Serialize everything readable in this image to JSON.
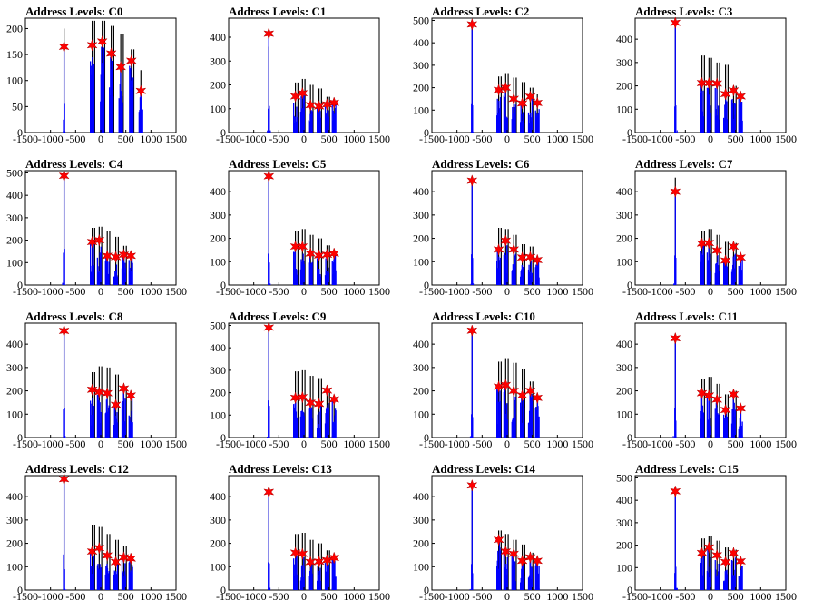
{
  "figure": {
    "xtick_labels": [
      "-1500",
      "-1000",
      "-500",
      "0",
      "500",
      "1000",
      "1500"
    ],
    "colors": {
      "histogram": "#0000ff",
      "peak_marker": "#ff0000",
      "black_trace": "#000000"
    }
  },
  "chart_data": [
    {
      "type": "bar",
      "title": "Address Levels: C0",
      "xlim": [
        -1500,
        1500
      ],
      "ylim": [
        0,
        220
      ],
      "yticks": [
        0,
        50,
        100,
        150,
        200
      ],
      "peaks": {
        "x": [
          -730,
          -170,
          30,
          210,
          400,
          610,
          800
        ],
        "y": [
          165,
          168,
          175,
          152,
          126,
          138,
          80
        ]
      },
      "black_bars": {
        "x": [
          -730,
          -170,
          -120,
          30,
          80,
          210,
          260,
          400,
          450,
          610,
          660,
          800
        ],
        "y": [
          200,
          215,
          215,
          215,
          215,
          205,
          205,
          190,
          190,
          160,
          160,
          120
        ]
      }
    },
    {
      "type": "bar",
      "title": "Address Levels: C1",
      "xlim": [
        -1500,
        1500
      ],
      "ylim": [
        0,
        480
      ],
      "yticks": [
        0,
        100,
        200,
        300,
        400
      ],
      "peaks": {
        "x": [
          -700,
          -170,
          -30,
          130,
          300,
          460,
          600
        ],
        "y": [
          415,
          152,
          165,
          115,
          110,
          118,
          125
        ]
      },
      "black_bars": {
        "x": [
          -700,
          -170,
          -120,
          -30,
          20,
          130,
          180,
          300,
          350,
          460,
          510,
          600
        ],
        "y": [
          360,
          210,
          210,
          225,
          225,
          200,
          200,
          185,
          185,
          150,
          150,
          130
        ]
      }
    },
    {
      "type": "bar",
      "title": "Address Levels: C2",
      "xlim": [
        -1500,
        1500
      ],
      "ylim": [
        0,
        510
      ],
      "yticks": [
        0,
        100,
        200,
        300,
        400,
        500
      ],
      "peaks": {
        "x": [
          -700,
          -170,
          -30,
          130,
          300,
          460,
          600
        ],
        "y": [
          482,
          190,
          200,
          150,
          130,
          160,
          132
        ]
      },
      "black_bars": {
        "x": [
          -700,
          -170,
          -120,
          -30,
          20,
          130,
          180,
          300,
          350,
          460,
          510,
          600
        ],
        "y": [
          490,
          250,
          250,
          265,
          265,
          245,
          245,
          225,
          225,
          200,
          200,
          170
        ]
      }
    },
    {
      "type": "bar",
      "title": "Address Levels: C3",
      "xlim": [
        -1500,
        1500
      ],
      "ylim": [
        0,
        490
      ],
      "yticks": [
        0,
        100,
        200,
        300,
        400
      ],
      "peaks": {
        "x": [
          -700,
          -170,
          -30,
          130,
          300,
          460,
          600
        ],
        "y": [
          470,
          212,
          212,
          210,
          165,
          180,
          155
        ]
      },
      "black_bars": {
        "x": [
          -700,
          -170,
          -120,
          -30,
          20,
          130,
          180,
          300,
          350,
          460,
          510,
          600
        ],
        "y": [
          470,
          330,
          330,
          320,
          320,
          300,
          300,
          290,
          290,
          200,
          200,
          160
        ]
      }
    },
    {
      "type": "bar",
      "title": "Address Levels: C4",
      "xlim": [
        -1500,
        1500
      ],
      "ylim": [
        0,
        510
      ],
      "yticks": [
        0,
        100,
        200,
        300,
        400,
        500
      ],
      "peaks": {
        "x": [
          -730,
          -170,
          -30,
          130,
          300,
          460,
          600
        ],
        "y": [
          487,
          192,
          200,
          130,
          125,
          135,
          130
        ]
      },
      "black_bars": {
        "x": [
          -730,
          -170,
          -120,
          -30,
          20,
          130,
          180,
          300,
          350,
          460,
          510,
          600
        ],
        "y": [
          490,
          255,
          255,
          260,
          260,
          240,
          240,
          215,
          215,
          175,
          175,
          150
        ]
      }
    },
    {
      "type": "bar",
      "title": "Address Levels: C5",
      "xlim": [
        -1500,
        1500
      ],
      "ylim": [
        0,
        490
      ],
      "yticks": [
        0,
        100,
        200,
        300,
        400
      ],
      "peaks": {
        "x": [
          -700,
          -170,
          -30,
          130,
          300,
          460,
          600
        ],
        "y": [
          466,
          165,
          165,
          135,
          127,
          130,
          135
        ]
      },
      "black_bars": {
        "x": [
          -700,
          -170,
          -120,
          -30,
          20,
          130,
          180,
          300,
          350,
          460,
          510,
          600
        ],
        "y": [
          470,
          230,
          230,
          240,
          240,
          215,
          215,
          200,
          200,
          170,
          170,
          145
        ]
      }
    },
    {
      "type": "bar",
      "title": "Address Levels: C6",
      "xlim": [
        -1500,
        1500
      ],
      "ylim": [
        0,
        490
      ],
      "yticks": [
        0,
        100,
        200,
        300,
        400
      ],
      "peaks": {
        "x": [
          -700,
          -170,
          -30,
          130,
          300,
          460,
          600
        ],
        "y": [
          447,
          152,
          190,
          152,
          118,
          120,
          107
        ]
      },
      "black_bars": {
        "x": [
          -700,
          -170,
          -120,
          -30,
          20,
          130,
          180,
          300,
          350,
          460,
          510,
          600
        ],
        "y": [
          450,
          245,
          245,
          240,
          240,
          215,
          215,
          175,
          175,
          165,
          165,
          125
        ]
      }
    },
    {
      "type": "bar",
      "title": "Address Levels: C7",
      "xlim": [
        -1500,
        1500
      ],
      "ylim": [
        0,
        490
      ],
      "yticks": [
        0,
        100,
        200,
        300,
        400
      ],
      "peaks": {
        "x": [
          -700,
          -170,
          -30,
          130,
          300,
          460,
          600
        ],
        "y": [
          400,
          178,
          180,
          148,
          105,
          165,
          118
        ]
      },
      "black_bars": {
        "x": [
          -700,
          -170,
          -120,
          -30,
          20,
          130,
          180,
          300,
          350,
          460,
          510,
          600
        ],
        "y": [
          460,
          230,
          230,
          240,
          240,
          215,
          215,
          185,
          185,
          180,
          180,
          120
        ]
      }
    },
    {
      "type": "bar",
      "title": "Address Levels: C8",
      "xlim": [
        -1500,
        1500
      ],
      "ylim": [
        0,
        490
      ],
      "yticks": [
        0,
        100,
        200,
        300,
        400
      ],
      "peaks": {
        "x": [
          -730,
          -170,
          -30,
          130,
          300,
          460,
          600
        ],
        "y": [
          457,
          205,
          195,
          190,
          140,
          210,
          180
        ]
      },
      "black_bars": {
        "x": [
          -730,
          -170,
          -120,
          -30,
          20,
          130,
          180,
          300,
          350,
          460,
          510,
          600
        ],
        "y": [
          460,
          280,
          280,
          305,
          305,
          300,
          300,
          270,
          270,
          220,
          220,
          195
        ]
      }
    },
    {
      "type": "bar",
      "title": "Address Levels: C9",
      "xlim": [
        -1500,
        1500
      ],
      "ylim": [
        0,
        510
      ],
      "yticks": [
        0,
        100,
        200,
        300,
        400,
        500
      ],
      "peaks": {
        "x": [
          -700,
          -170,
          -30,
          130,
          300,
          460,
          600
        ],
        "y": [
          490,
          177,
          180,
          155,
          150,
          210,
          170
        ]
      },
      "black_bars": {
        "x": [
          -700,
          -170,
          -120,
          -30,
          20,
          130,
          180,
          300,
          350,
          460,
          510,
          600
        ],
        "y": [
          490,
          295,
          295,
          300,
          300,
          275,
          275,
          265,
          265,
          220,
          220,
          180
        ]
      }
    },
    {
      "type": "bar",
      "title": "Address Levels: C10",
      "xlim": [
        -1500,
        1500
      ],
      "ylim": [
        0,
        490
      ],
      "yticks": [
        0,
        100,
        200,
        300,
        400
      ],
      "peaks": {
        "x": [
          -700,
          -170,
          -30,
          130,
          300,
          460,
          600
        ],
        "y": [
          458,
          218,
          225,
          200,
          180,
          200,
          170
        ]
      },
      "black_bars": {
        "x": [
          -700,
          -170,
          -120,
          -30,
          20,
          130,
          180,
          300,
          350,
          460,
          510,
          600
        ],
        "y": [
          460,
          325,
          325,
          340,
          340,
          320,
          320,
          295,
          295,
          240,
          240,
          175
        ]
      }
    },
    {
      "type": "bar",
      "title": "Address Levels: C11",
      "xlim": [
        -1500,
        1500
      ],
      "ylim": [
        0,
        490
      ],
      "yticks": [
        0,
        100,
        200,
        300,
        400
      ],
      "peaks": {
        "x": [
          -700,
          -170,
          -30,
          130,
          300,
          460,
          600
        ],
        "y": [
          425,
          190,
          180,
          163,
          118,
          185,
          125
        ]
      },
      "black_bars": {
        "x": [
          -700,
          -170,
          -120,
          -30,
          20,
          130,
          180,
          300,
          350,
          460,
          510,
          600
        ],
        "y": [
          440,
          250,
          250,
          260,
          260,
          230,
          230,
          185,
          185,
          200,
          200,
          135
        ]
      }
    },
    {
      "type": "bar",
      "title": "Address Levels: C12",
      "xlim": [
        -1500,
        1500
      ],
      "ylim": [
        0,
        490
      ],
      "yticks": [
        0,
        100,
        200,
        300,
        400
      ],
      "peaks": {
        "x": [
          -730,
          -170,
          -30,
          130,
          300,
          460,
          600
        ],
        "y": [
          475,
          165,
          180,
          148,
          120,
          140,
          135
        ]
      },
      "black_bars": {
        "x": [
          -730,
          -170,
          -120,
          -30,
          20,
          130,
          180,
          300,
          350,
          460,
          510,
          600
        ],
        "y": [
          480,
          280,
          280,
          270,
          270,
          240,
          240,
          215,
          215,
          190,
          190,
          145
        ]
      }
    },
    {
      "type": "bar",
      "title": "Address Levels: C13",
      "xlim": [
        -1500,
        1500
      ],
      "ylim": [
        0,
        490
      ],
      "yticks": [
        0,
        100,
        200,
        300,
        400
      ],
      "peaks": {
        "x": [
          -700,
          -170,
          -30,
          130,
          300,
          460,
          600
        ],
        "y": [
          420,
          160,
          155,
          120,
          122,
          128,
          138
        ]
      },
      "black_bars": {
        "x": [
          -700,
          -170,
          -120,
          -30,
          20,
          130,
          180,
          300,
          350,
          460,
          510,
          600
        ],
        "y": [
          430,
          240,
          240,
          245,
          245,
          215,
          215,
          200,
          200,
          170,
          170,
          145
        ]
      }
    },
    {
      "type": "bar",
      "title": "Address Levels: C14",
      "xlim": [
        -1500,
        1500
      ],
      "ylim": [
        0,
        490
      ],
      "yticks": [
        0,
        100,
        200,
        300,
        400
      ],
      "peaks": {
        "x": [
          -700,
          -170,
          -30,
          130,
          300,
          460,
          600
        ],
        "y": [
          448,
          215,
          165,
          155,
          125,
          140,
          125
        ]
      },
      "black_bars": {
        "x": [
          -700,
          -170,
          -120,
          -30,
          20,
          130,
          180,
          300,
          350,
          460,
          510,
          600
        ],
        "y": [
          450,
          255,
          255,
          240,
          240,
          215,
          215,
          195,
          195,
          160,
          160,
          140
        ]
      }
    },
    {
      "type": "bar",
      "title": "Address Levels: C15",
      "xlim": [
        -1500,
        1500
      ],
      "ylim": [
        0,
        510
      ],
      "yticks": [
        0,
        100,
        200,
        300,
        400,
        500
      ],
      "peaks": {
        "x": [
          -700,
          -170,
          -30,
          130,
          300,
          460,
          600
        ],
        "y": [
          440,
          165,
          190,
          155,
          125,
          165,
          128
        ]
      },
      "black_bars": {
        "x": [
          -700,
          -170,
          -120,
          -30,
          20,
          130,
          180,
          300,
          350,
          460,
          510,
          600
        ],
        "y": [
          450,
          230,
          230,
          240,
          240,
          220,
          220,
          190,
          190,
          180,
          180,
          140
        ]
      }
    }
  ]
}
